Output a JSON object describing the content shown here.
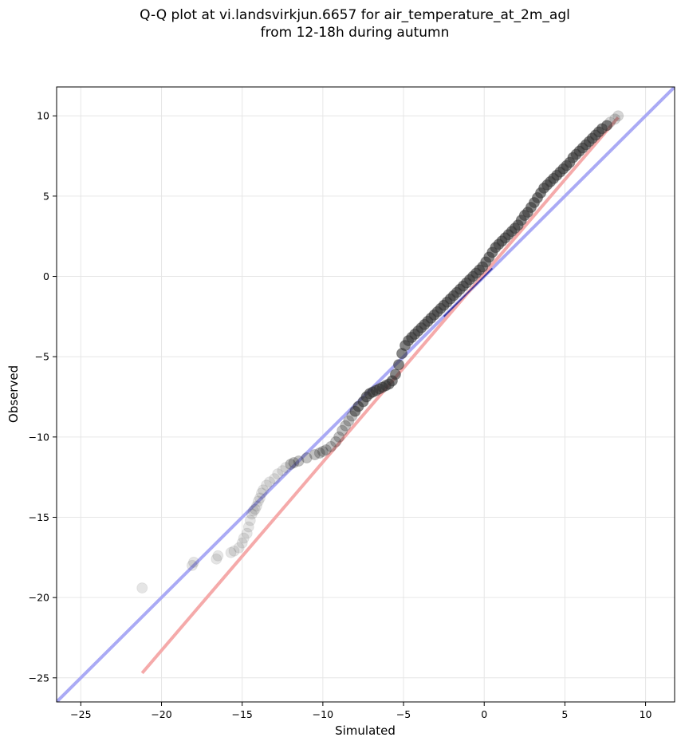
{
  "chart_data": {
    "type": "scatter",
    "title": "Q-Q plot at vi.landsvirkjun.6657 for air_temperature_at_2m_agl",
    "subtitle": "from 12-18h during autumn",
    "xlabel": "Simulated",
    "ylabel": "Observed",
    "xlim": [
      -26.5,
      11.8
    ],
    "ylim": [
      -26.5,
      11.8
    ],
    "xticks": [
      -25,
      -20,
      -15,
      -10,
      -5,
      0,
      5,
      10
    ],
    "yticks": [
      -25,
      -20,
      -15,
      -10,
      -5,
      0,
      5,
      10
    ],
    "xtick_labels": [
      "−25",
      "−20",
      "−15",
      "−10",
      "−5",
      "0",
      "5",
      "10"
    ],
    "ytick_labels": [
      "−25",
      "−20",
      "−15",
      "−10",
      "−5",
      "0",
      "5",
      "10"
    ],
    "grid": true,
    "identity_line": {
      "color": "#aaaaf5",
      "x": [
        -26.5,
        11.8
      ],
      "y": [
        -26.5,
        11.8
      ]
    },
    "fit_line": {
      "color": "#f5aaaa",
      "x": [
        -21.2,
        8.3
      ],
      "y": [
        -24.7,
        9.9
      ]
    },
    "highlight_segment": {
      "color": "#1f1f8f",
      "x": [
        -2.5,
        0.5
      ],
      "y": [
        -2.5,
        0.5
      ]
    },
    "marker_color": "#333333",
    "points": {
      "x": [
        -21.2,
        -18.1,
        -18.0,
        -16.6,
        -16.5,
        -15.7,
        -15.5,
        -15.2,
        -15.0,
        -14.9,
        -14.7,
        -14.6,
        -14.5,
        -14.4,
        -14.3,
        -14.2,
        -14.1,
        -14.0,
        -13.9,
        -13.8,
        -13.7,
        -13.5,
        -13.3,
        -13.0,
        -12.8,
        -12.5,
        -12.3,
        -12.0,
        -11.8,
        -11.5,
        -11.0,
        -10.5,
        -10.2,
        -10.0,
        -9.8,
        -9.5,
        -9.2,
        -9.0,
        -8.8,
        -8.6,
        -8.4,
        -8.2,
        -8.0,
        -7.8,
        -7.5,
        -7.3,
        -7.1,
        -6.9,
        -6.7,
        -6.5,
        -6.3,
        -6.1,
        -5.9,
        -5.7,
        -5.5,
        -5.3,
        -5.1,
        -4.9,
        -4.7,
        -4.5,
        -4.3,
        -4.1,
        -3.9,
        -3.7,
        -3.5,
        -3.3,
        -3.1,
        -2.9,
        -2.7,
        -2.5,
        -2.3,
        -2.1,
        -1.9,
        -1.7,
        -1.5,
        -1.3,
        -1.1,
        -0.9,
        -0.7,
        -0.5,
        -0.3,
        -0.1,
        0.1,
        0.3,
        0.5,
        0.7,
        0.9,
        1.1,
        1.3,
        1.5,
        1.7,
        1.9,
        2.1,
        2.3,
        2.5,
        2.7,
        2.9,
        3.1,
        3.3,
        3.5,
        3.7,
        3.9,
        4.1,
        4.3,
        4.5,
        4.7,
        4.9,
        5.1,
        5.3,
        5.5,
        5.7,
        5.9,
        6.1,
        6.3,
        6.5,
        6.7,
        6.9,
        7.1,
        7.3,
        7.6,
        7.8,
        8.1,
        8.3
      ],
      "y": [
        -19.4,
        -18.0,
        -17.8,
        -17.6,
        -17.4,
        -17.2,
        -17.1,
        -16.9,
        -16.6,
        -16.3,
        -16.0,
        -15.6,
        -15.2,
        -14.8,
        -14.6,
        -14.5,
        -14.3,
        -14.0,
        -13.8,
        -13.5,
        -13.3,
        -13.0,
        -12.8,
        -12.6,
        -12.3,
        -12.1,
        -11.9,
        -11.7,
        -11.6,
        -11.5,
        -11.3,
        -11.1,
        -11.0,
        -10.9,
        -10.8,
        -10.6,
        -10.3,
        -10.0,
        -9.6,
        -9.3,
        -9.0,
        -8.7,
        -8.4,
        -8.1,
        -7.8,
        -7.5,
        -7.3,
        -7.2,
        -7.1,
        -7.0,
        -6.9,
        -6.8,
        -6.7,
        -6.5,
        -6.1,
        -5.5,
        -4.8,
        -4.3,
        -4.0,
        -3.8,
        -3.6,
        -3.4,
        -3.2,
        -3.0,
        -2.8,
        -2.6,
        -2.4,
        -2.2,
        -2.0,
        -1.8,
        -1.6,
        -1.4,
        -1.2,
        -1.0,
        -0.8,
        -0.6,
        -0.4,
        -0.2,
        0.0,
        0.2,
        0.4,
        0.6,
        0.9,
        1.2,
        1.5,
        1.8,
        2.0,
        2.2,
        2.4,
        2.6,
        2.8,
        3.0,
        3.2,
        3.5,
        3.8,
        4.0,
        4.3,
        4.6,
        4.9,
        5.2,
        5.5,
        5.7,
        5.9,
        6.1,
        6.3,
        6.5,
        6.7,
        6.9,
        7.1,
        7.4,
        7.6,
        7.8,
        8.0,
        8.2,
        8.4,
        8.6,
        8.8,
        9.0,
        9.2,
        9.4,
        9.6,
        9.8,
        10.0
      ]
    }
  }
}
